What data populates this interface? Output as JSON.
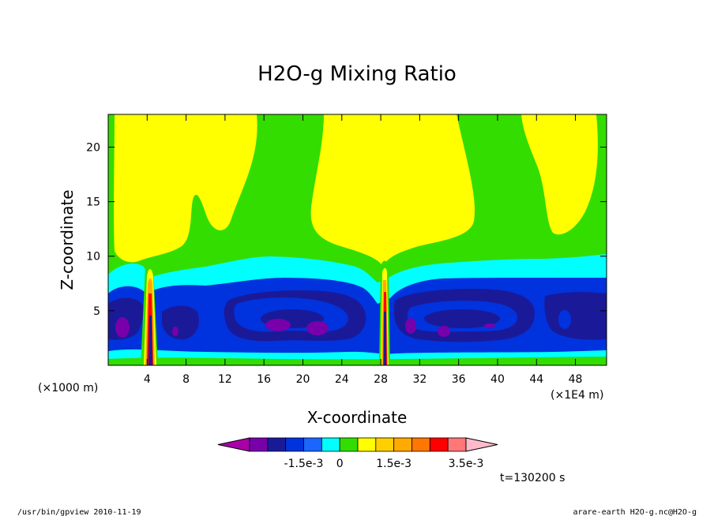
{
  "chart_data": {
    "type": "contour",
    "title": "H2O-g Mixing Ratio",
    "xlabel": "X-coordinate",
    "ylabel": "Z-coordinate",
    "x_unit_left": "(×1000 m)",
    "x_unit_right": "(×1E4 m)",
    "x_ticks": [
      4,
      8,
      12,
      16,
      20,
      24,
      28,
      32,
      36,
      40,
      44,
      48
    ],
    "y_ticks": [
      5,
      10,
      15,
      20
    ],
    "xlim": [
      0,
      51.2
    ],
    "ylim": [
      0,
      23
    ],
    "colorbar": {
      "colors": [
        "#aa00aa",
        "#7700aa",
        "#1a1a99",
        "#0033dd",
        "#1a66ff",
        "#00ffff",
        "#33dd00",
        "#ffff00",
        "#ffd000",
        "#ffaa00",
        "#ff7700",
        "#ff0000",
        "#ff7777",
        "#ffbbcc"
      ],
      "labels": [
        {
          "text": "-1.5e-3",
          "after_box": 3
        },
        {
          "text": "0",
          "after_box": 5
        },
        {
          "text": "1.5e-3",
          "after_box": 8
        },
        {
          "text": "3.5e-3",
          "after_box": 12
        }
      ]
    },
    "time_label": "t=130200 s",
    "footer_left": "/usr/bin/gpview   2010-11-19",
    "footer_right": "arare-earth_H2O-g.nc@H2O-g"
  }
}
